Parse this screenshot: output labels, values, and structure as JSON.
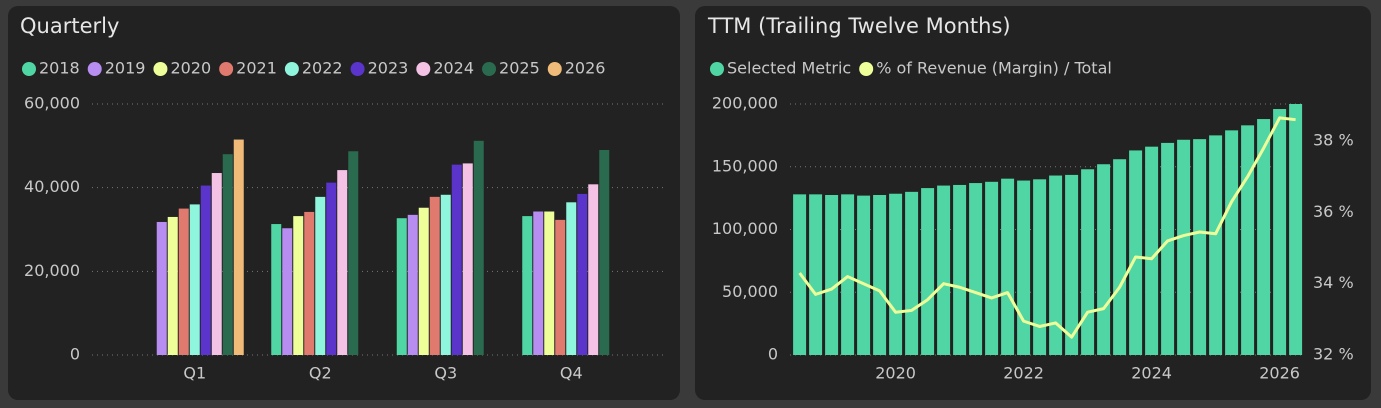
{
  "chart_data": [
    {
      "type": "bar",
      "title": "Quarterly",
      "categories": [
        "Q1",
        "Q2",
        "Q3",
        "Q4"
      ],
      "series": [
        {
          "name": "2018",
          "color": "#4fd6a4",
          "values": [
            null,
            31300,
            32700,
            33200
          ]
        },
        {
          "name": "2019",
          "color": "#b78df2",
          "values": [
            31800,
            30300,
            33500,
            34300
          ]
        },
        {
          "name": "2020",
          "color": "#eeff99",
          "values": [
            33000,
            33200,
            35200,
            34300
          ]
        },
        {
          "name": "2021",
          "color": "#e07a6e",
          "values": [
            35000,
            34200,
            37800,
            32300
          ]
        },
        {
          "name": "2022",
          "color": "#8ff5dc",
          "values": [
            36000,
            37800,
            38300,
            36500
          ]
        },
        {
          "name": "2023",
          "color": "#5b34cc",
          "values": [
            40500,
            41200,
            45500,
            38500
          ]
        },
        {
          "name": "2024",
          "color": "#f4c2e4",
          "values": [
            43500,
            44200,
            45800,
            40800
          ]
        },
        {
          "name": "2025",
          "color": "#2a6b4f",
          "values": [
            48000,
            48700,
            51200,
            49000
          ]
        },
        {
          "name": "2026",
          "color": "#f0bb78",
          "values": [
            51500,
            null,
            null,
            null
          ]
        }
      ],
      "ylim": [
        0,
        60000
      ],
      "yticks": [
        0,
        {
          "value": 20000,
          "label": "20,000"
        },
        {
          "value": 40000,
          "label": "40,000"
        },
        {
          "value": 60000,
          "label": "60,000"
        }
      ],
      "grid": true
    },
    {
      "type": "combo",
      "title": "TTM (Trailing Twelve Months)",
      "x": [
        2018.5,
        2018.75,
        2019,
        2019.25,
        2019.5,
        2019.75,
        2020,
        2020.25,
        2020.5,
        2020.75,
        2021,
        2021.25,
        2021.5,
        2021.75,
        2022,
        2022.25,
        2022.5,
        2022.75,
        2023,
        2023.25,
        2023.5,
        2023.75,
        2024,
        2024.25,
        2024.5,
        2024.75,
        2025,
        2025.25,
        2025.5,
        2025.75,
        2026,
        2026.25
      ],
      "series": [
        {
          "name": "Selected Metric",
          "color": "#4fd6a4",
          "values": [
            128000,
            128000,
            127500,
            128000,
            127000,
            127500,
            128500,
            130000,
            133000,
            135000,
            135500,
            137000,
            138000,
            140500,
            139000,
            140000,
            143000,
            143500,
            148000,
            152000,
            156000,
            163000,
            166000,
            169000,
            171500,
            172000,
            175000,
            179000,
            183000,
            188000,
            196000,
            200000
          ]
        },
        {
          "name": "% of Revenue (Margin) / Total",
          "color": "#eeff99",
          "axis": "y2",
          "values": [
            34.3,
            33.7,
            33.85,
            34.2,
            34.0,
            33.8,
            33.2,
            33.25,
            33.55,
            34.0,
            33.9,
            33.75,
            33.6,
            33.75,
            32.95,
            32.8,
            32.9,
            32.5,
            33.2,
            33.3,
            33.9,
            34.75,
            34.7,
            35.2,
            35.35,
            35.45,
            35.4,
            36.3,
            37.0,
            37.8,
            38.65,
            38.6
          ]
        }
      ],
      "xlim": [
        2018.35,
        2026.35
      ],
      "xticks": [
        2020,
        2022,
        2024,
        2026
      ],
      "ylim": [
        0,
        200000
      ],
      "yticks": [
        0,
        {
          "value": 50000,
          "label": "50,000"
        },
        {
          "value": 100000,
          "label": "100,000"
        },
        {
          "value": 150000,
          "label": "150,000"
        },
        {
          "value": 200000,
          "label": "200,000"
        }
      ],
      "y2lim": [
        32,
        39.04
      ],
      "y2ticks": [
        {
          "value": 32,
          "label": "32 %"
        },
        {
          "value": 34,
          "label": "34 %"
        },
        {
          "value": 36,
          "label": "36 %"
        },
        {
          "value": 38,
          "label": "38 %"
        }
      ],
      "grid": true
    }
  ]
}
